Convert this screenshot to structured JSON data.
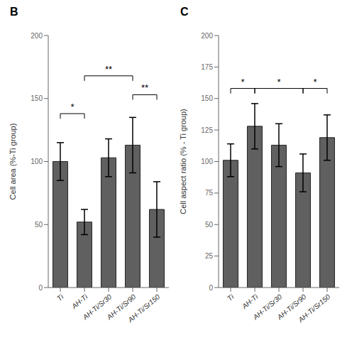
{
  "chart_data": [
    {
      "type": "bar",
      "title": "B",
      "categories": [
        "Ti",
        "AH-Ti",
        "AH-Ti/Sr30",
        "AH-Ti/Sr90",
        "AH-Ti/Sr150"
      ],
      "values": [
        100,
        52,
        103,
        113,
        62
      ],
      "errors": [
        15,
        10,
        15,
        22,
        22
      ],
      "color": "#606060",
      "ylabel": "Cell area (%-Ti group)",
      "ylim": [
        0,
        200
      ],
      "yticks": [
        0,
        50,
        100,
        150,
        200
      ],
      "grid": false,
      "annotations": [
        {
          "text": "*",
          "x1": "Ti",
          "x2": "AH-Ti",
          "y": 138,
          "tick_drop": 4
        },
        {
          "text": "**",
          "x1": "AH-Ti",
          "x2": "AH-Ti/Sr90",
          "y": 168,
          "tick_drop": 4
        },
        {
          "text": "**",
          "x1": "AH-Ti/Sr90",
          "x2": "AH-Ti/Sr150",
          "y": 153,
          "tick_drop": 4
        }
      ]
    },
    {
      "type": "bar",
      "title": "C",
      "categories": [
        "Ti",
        "AH-Ti",
        "AH-Ti/Sr30",
        "AH-Ti/Sr90",
        "AH-Ti/Sr150"
      ],
      "values": [
        101,
        128,
        113,
        91,
        119
      ],
      "errors": [
        13,
        18,
        17,
        15,
        18
      ],
      "color": "#606060",
      "ylabel": "Cell aspect ratio (% - Ti group)",
      "ylim": [
        0,
        200
      ],
      "yticks": [
        0,
        25,
        50,
        75,
        100,
        125,
        150,
        175,
        200
      ],
      "grid": false,
      "annotations": [
        {
          "text": "*",
          "x1": "Ti",
          "x2": "AH-Ti",
          "y": 158,
          "tick_drop": 4
        },
        {
          "text": "*",
          "x1": "AH-Ti",
          "x2": "AH-Ti/Sr90",
          "y": 158,
          "tick_drop": 4
        },
        {
          "text": "*",
          "x1": "AH-Ti/Sr90",
          "x2": "AH-Ti/Sr150",
          "y": 158,
          "tick_drop": 4
        }
      ]
    }
  ]
}
